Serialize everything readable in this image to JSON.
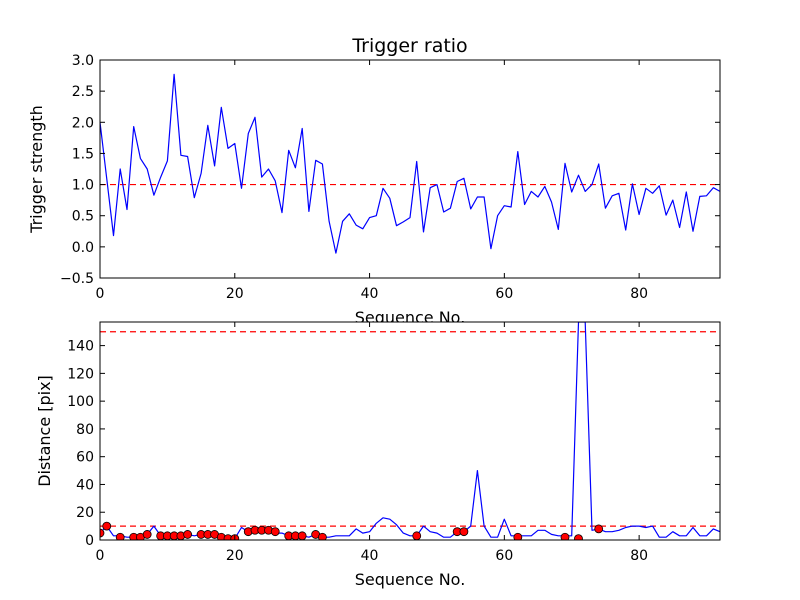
{
  "chart_data": [
    {
      "type": "line",
      "title": "Trigger ratio",
      "xlabel": "Sequence No.",
      "ylabel": "Trigger strength",
      "xlim": [
        0,
        92
      ],
      "ylim": [
        -0.5,
        3.0
      ],
      "x_ticks": [
        0,
        20,
        40,
        60,
        80
      ],
      "x_tick_labels": [
        "0",
        "20",
        "40",
        "60",
        "80"
      ],
      "y_ticks": [
        -0.5,
        0.0,
        0.5,
        1.0,
        1.5,
        2.0,
        2.5,
        3.0
      ],
      "y_tick_labels": [
        "−0.5",
        "0.0",
        "0.5",
        "1.0",
        "1.5",
        "2.0",
        "2.5",
        "3.0"
      ],
      "grid": false,
      "series": [
        {
          "color": "#0000ff",
          "x": [
            0,
            1,
            2,
            3,
            4,
            5,
            6,
            7,
            8,
            9,
            10,
            11,
            12,
            13,
            14,
            15,
            16,
            17,
            18,
            19,
            20,
            21,
            22,
            23,
            24,
            25,
            26,
            27,
            28,
            29,
            30,
            31,
            32,
            33,
            34,
            35,
            36,
            37,
            38,
            39,
            40,
            41,
            42,
            43,
            44,
            45,
            46,
            47,
            48,
            49,
            50,
            51,
            52,
            53,
            54,
            55,
            56,
            57,
            58,
            59,
            60,
            61,
            62,
            63,
            64,
            65,
            66,
            67,
            68,
            69,
            70,
            71,
            72,
            73,
            74,
            75,
            76,
            77,
            78,
            79,
            80,
            81,
            82,
            83,
            84,
            85,
            86,
            87,
            88,
            89,
            90,
            91,
            92
          ],
          "values": [
            2.0,
            1.1,
            0.18,
            1.25,
            0.6,
            1.93,
            1.42,
            1.25,
            0.83,
            1.12,
            1.38,
            2.77,
            1.47,
            1.45,
            0.79,
            1.18,
            1.95,
            1.3,
            2.24,
            1.58,
            1.66,
            0.94,
            1.82,
            2.08,
            1.12,
            1.25,
            1.06,
            0.55,
            1.55,
            1.27,
            1.9,
            0.57,
            1.39,
            1.33,
            0.41,
            -0.1,
            0.41,
            0.53,
            0.35,
            0.29,
            0.47,
            0.5,
            0.94,
            0.78,
            0.34,
            0.4,
            0.47,
            1.37,
            0.24,
            0.95,
            1.0,
            0.56,
            0.62,
            1.05,
            1.1,
            0.61,
            0.8,
            0.8,
            -0.03,
            0.5,
            0.66,
            0.64,
            1.53,
            0.68,
            0.89,
            0.8,
            0.97,
            0.72,
            0.28,
            1.34,
            0.88,
            1.15,
            0.89,
            1.0,
            1.33,
            0.62,
            0.82,
            0.86,
            0.27,
            1.01,
            0.52,
            0.94,
            0.86,
            0.98,
            0.51,
            0.75,
            0.31,
            0.88,
            0.25,
            0.81,
            0.82,
            0.95,
            0.89
          ]
        }
      ],
      "reference_lines": [
        {
          "y": 1.0,
          "color": "#ff0000",
          "style": "dashed"
        }
      ]
    },
    {
      "type": "line",
      "title": "",
      "xlabel": "Sequence No.",
      "ylabel": "Distance [pix]",
      "xlim": [
        0,
        92
      ],
      "ylim": [
        0,
        157
      ],
      "x_ticks": [
        0,
        20,
        40,
        60,
        80
      ],
      "x_tick_labels": [
        "0",
        "20",
        "40",
        "60",
        "80"
      ],
      "y_ticks": [
        0,
        20,
        40,
        60,
        80,
        100,
        120,
        140
      ],
      "y_tick_labels": [
        "0",
        "20",
        "40",
        "60",
        "80",
        "100",
        "120",
        "140"
      ],
      "grid": false,
      "series": [
        {
          "color": "#0000ff",
          "x": [
            0,
            1,
            2,
            3,
            4,
            5,
            6,
            7,
            8,
            9,
            10,
            11,
            12,
            13,
            14,
            15,
            16,
            17,
            18,
            19,
            20,
            21,
            22,
            23,
            24,
            25,
            26,
            27,
            28,
            29,
            30,
            31,
            32,
            33,
            34,
            35,
            36,
            37,
            38,
            39,
            40,
            41,
            42,
            43,
            44,
            45,
            46,
            47,
            48,
            49,
            50,
            51,
            52,
            53,
            54,
            55,
            56,
            57,
            58,
            59,
            60,
            61,
            62,
            63,
            64,
            65,
            66,
            67,
            68,
            69,
            70,
            71,
            72,
            73,
            74,
            75,
            76,
            77,
            78,
            79,
            80,
            81,
            82,
            83,
            84,
            85,
            86,
            87,
            88,
            89,
            90,
            91,
            92
          ],
          "values": [
            5,
            10,
            3,
            3,
            2,
            2,
            2,
            4,
            10,
            3,
            3,
            3,
            4,
            4,
            3,
            4,
            4,
            4,
            2,
            1,
            1,
            9,
            6,
            7,
            7,
            6,
            5,
            5,
            3,
            3,
            3,
            2,
            4,
            2,
            2,
            3,
            3,
            3,
            8,
            5,
            6,
            12,
            16,
            15,
            11,
            5,
            3,
            3,
            10,
            6,
            5,
            2,
            2,
            6,
            6,
            10,
            50,
            10,
            2,
            2,
            15,
            3,
            3,
            3,
            3,
            7,
            7,
            4,
            3,
            3,
            3,
            157,
            157,
            7,
            8,
            6,
            6,
            7,
            9,
            10,
            10,
            9,
            10,
            2,
            2,
            6,
            3,
            3,
            9,
            3,
            3,
            8,
            6
          ]
        },
        {
          "name": "",
          "color": "#ff0000",
          "style": "markers",
          "x": [
            0,
            1,
            3,
            5,
            6,
            7,
            9,
            10,
            11,
            12,
            13,
            15,
            16,
            17,
            18,
            19,
            20,
            22,
            23,
            24,
            25,
            26,
            28,
            29,
            30,
            32,
            33,
            47,
            53,
            54,
            62,
            69,
            71,
            74
          ],
          "values": [
            5,
            10,
            2,
            2,
            2,
            4,
            3,
            3,
            3,
            3,
            4,
            4,
            4,
            4,
            2,
            1,
            1,
            6,
            7,
            7,
            7,
            6,
            3,
            3,
            3,
            4,
            2,
            3,
            6,
            6,
            2,
            2,
            1,
            8
          ]
        }
      ],
      "reference_lines": [
        {
          "y": 150,
          "color": "#ff0000",
          "style": "dashed"
        },
        {
          "y": 10,
          "color": "#ff0000",
          "style": "dashed"
        }
      ]
    }
  ]
}
